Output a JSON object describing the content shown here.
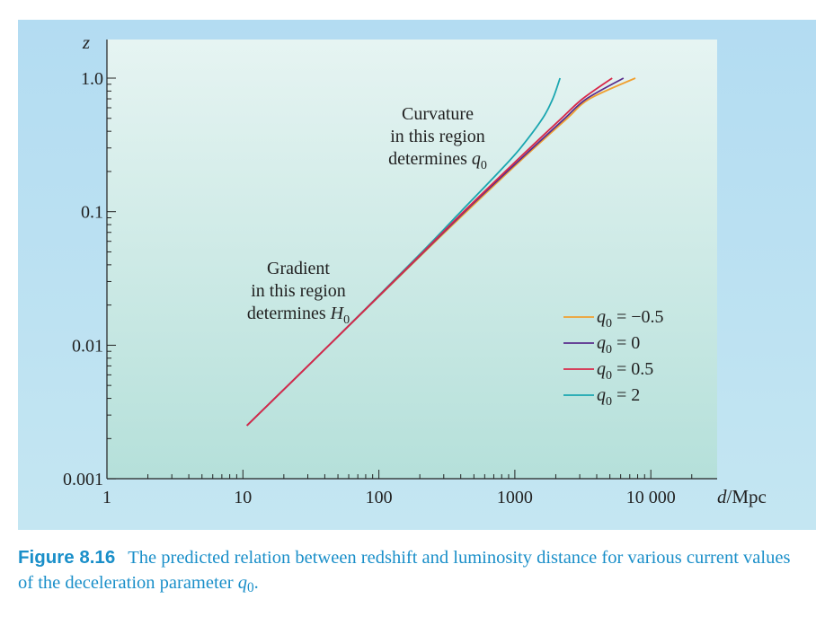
{
  "chart_data": {
    "type": "line",
    "x_scale": "log",
    "y_scale": "log",
    "xlim": [
      1,
      20000
    ],
    "ylim": [
      0.001,
      1.0
    ],
    "xlabel": "d/Mpc",
    "ylabel": "z",
    "x_ticks": [
      {
        "value": 1,
        "label": "1"
      },
      {
        "value": 10,
        "label": "10"
      },
      {
        "value": 100,
        "label": "100"
      },
      {
        "value": 1000,
        "label": "1000"
      },
      {
        "value": 10000,
        "label": "10 000"
      }
    ],
    "y_ticks": [
      {
        "value": 0.001,
        "label": "0.001"
      },
      {
        "value": 0.01,
        "label": "0.01"
      },
      {
        "value": 0.1,
        "label": "0.1"
      },
      {
        "value": 1.0,
        "label": "1.0"
      }
    ],
    "legend_position": "bottom-right",
    "series": [
      {
        "name": "q0 = −0.5",
        "color": "#f0a030",
        "z": [
          0.0025,
          0.01,
          0.05,
          0.1,
          0.2,
          0.3,
          0.5,
          0.7,
          1.0
        ],
        "d": [
          10.7,
          43,
          217,
          440,
          905,
          1390,
          2430,
          3550,
          7700
        ]
      },
      {
        "name": "q0 = 0",
        "color": "#5a2d8c",
        "z": [
          0.0025,
          0.01,
          0.05,
          0.1,
          0.2,
          0.3,
          0.5,
          0.7,
          1.0
        ],
        "d": [
          10.7,
          43,
          214,
          428,
          880,
          1350,
          2330,
          3370,
          6300
        ]
      },
      {
        "name": "q0 = 0.5",
        "color": "#d8284a",
        "z": [
          0.0025,
          0.01,
          0.05,
          0.1,
          0.2,
          0.3,
          0.5,
          0.7,
          1.0
        ],
        "d": [
          10.7,
          43,
          212,
          420,
          850,
          1290,
          2200,
          3150,
          5200
        ]
      },
      {
        "name": "q0 = 2",
        "color": "#1aa6b0",
        "z": [
          0.0025,
          0.01,
          0.05,
          0.1,
          0.2,
          0.3,
          0.5,
          0.7,
          1.0
        ],
        "d": [
          10.7,
          43,
          208,
          400,
          770,
          1100,
          1600,
          1900,
          2150
        ]
      }
    ],
    "annotations": [
      {
        "lines": [
          "Gradient",
          "in this region",
          "determines H0"
        ]
      },
      {
        "lines": [
          "Curvature",
          "in this region",
          "determines q0"
        ]
      }
    ]
  },
  "caption": {
    "label": "Figure 8.16",
    "text": "The predicted relation between redshift and luminosity distance for various current values of the deceleration parameter q0."
  }
}
